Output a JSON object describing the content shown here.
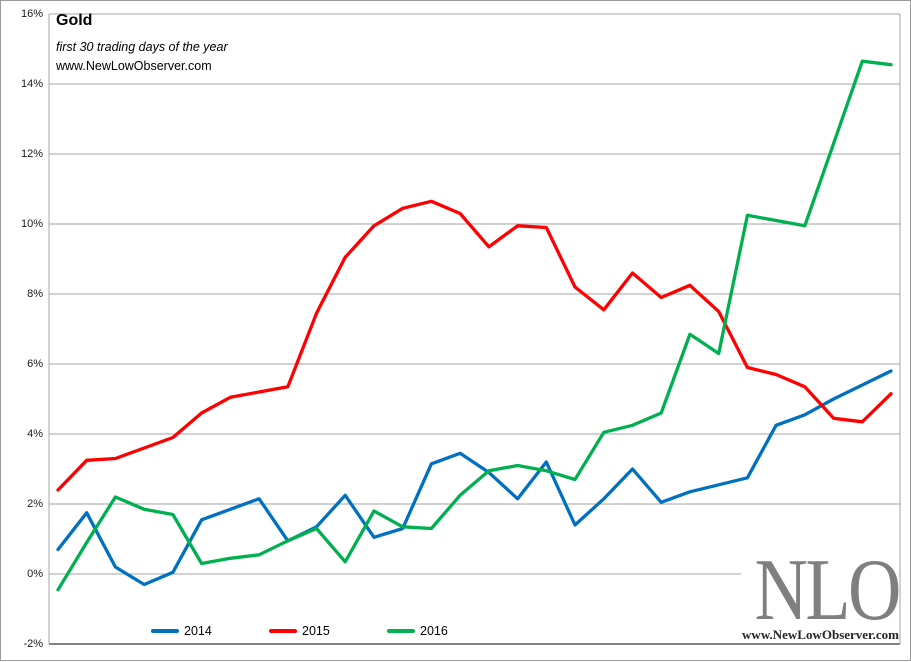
{
  "header": {
    "title": "Gold",
    "subtitle": "first 30 trading days of the year",
    "source_url": "www.NewLowObserver.com"
  },
  "watermark": {
    "acronym": "NLO",
    "url": "www.NewLowObserver.com"
  },
  "legend": {
    "items": [
      {
        "label": "2014",
        "color": "#0070C0"
      },
      {
        "label": "2015",
        "color": "#FF0000"
      },
      {
        "label": "2016",
        "color": "#00B050"
      }
    ]
  },
  "colors": {
    "grid": "#A6A6A6",
    "bottom_axis": "#595959",
    "side_frame": "#A6A6A6",
    "blue_2014": "#0070C0",
    "red_2015": "#FF0000",
    "green_2016": "#00B050"
  },
  "chart_data": {
    "type": "line",
    "title": "Gold",
    "subtitle": "first 30 trading days of the year",
    "xlabel": "",
    "ylabel": "",
    "x_tick_labels_shown": false,
    "grid": "horizontal",
    "legend_position": "bottom",
    "ylim": [
      -2,
      16
    ],
    "y_ticks": [
      16,
      14,
      12,
      10,
      8,
      6,
      4,
      2,
      0,
      -2
    ],
    "y_tick_labels": [
      "16%",
      "14%",
      "12%",
      "10%",
      "8%",
      "6%",
      "4%",
      "2%",
      "0%",
      "-2%"
    ],
    "x": [
      1,
      2,
      3,
      4,
      5,
      6,
      7,
      8,
      9,
      10,
      11,
      12,
      13,
      14,
      15,
      16,
      17,
      18,
      19,
      20,
      21,
      22,
      23,
      24,
      25,
      26,
      27,
      28,
      29,
      30
    ],
    "series": [
      {
        "name": "2014",
        "color": "#0070C0",
        "values": [
          0.7,
          1.75,
          0.2,
          -0.3,
          0.05,
          1.55,
          1.85,
          2.15,
          0.95,
          1.35,
          2.25,
          1.05,
          1.3,
          3.15,
          3.45,
          2.9,
          2.15,
          3.2,
          1.4,
          2.15,
          3.0,
          2.05,
          2.35,
          2.55,
          2.75,
          4.25,
          4.55,
          5.0,
          5.4,
          5.8
        ]
      },
      {
        "name": "2015",
        "color": "#FF0000",
        "values": [
          2.4,
          3.25,
          3.3,
          3.6,
          3.9,
          4.6,
          5.05,
          5.2,
          5.35,
          7.45,
          9.05,
          9.95,
          10.45,
          10.65,
          10.3,
          9.35,
          9.95,
          9.9,
          8.2,
          7.55,
          8.6,
          7.9,
          8.25,
          7.5,
          5.9,
          5.7,
          5.35,
          4.45,
          4.35,
          5.15
        ]
      },
      {
        "name": "2016",
        "color": "#00B050",
        "values": [
          -0.45,
          0.9,
          2.2,
          1.85,
          1.7,
          0.3,
          0.45,
          0.55,
          0.95,
          1.3,
          0.35,
          1.8,
          1.35,
          1.3,
          2.25,
          2.95,
          3.1,
          2.95,
          2.7,
          4.05,
          4.25,
          4.6,
          6.85,
          6.3,
          10.25,
          10.1,
          9.95,
          12.3,
          14.65,
          14.55
        ]
      }
    ]
  }
}
